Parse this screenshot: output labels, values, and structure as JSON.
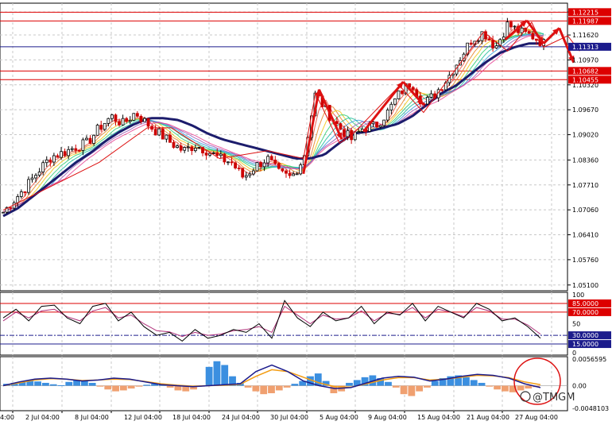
{
  "chart_data": {
    "type": "candlestick",
    "instrument_note": "",
    "x_axis_labels": [
      "2 Jul 04:00",
      "8 Jul 04:00",
      "12 Jul 04:00",
      "18 Jul 04:00",
      "24 Jul 04:00",
      "30 Jul 04:00",
      "5 Aug 04:00",
      "9 Aug 04:00",
      "15 Aug 04:00",
      "21 Aug 04:00",
      "27 Aug 04:00"
    ],
    "leading_x_label": "4:00",
    "price_axis": {
      "ticks": [
        "1.12220",
        "1.11620",
        "1.10970",
        "1.10320",
        "1.09670",
        "1.09020",
        "1.08360",
        "1.07710",
        "1.07060",
        "1.06410",
        "1.05760",
        "1.05100"
      ],
      "range": [
        1.0495,
        1.1245
      ]
    },
    "horizontal_levels": [
      {
        "value": "1.12215",
        "label": "1.12215",
        "color": "#dd0000"
      },
      {
        "value": "1.11987",
        "label": "1.11987",
        "color": "#dd0000"
      },
      {
        "value": "1.11313",
        "label": "1.11313",
        "color": "#1c1c8c"
      },
      {
        "value": "1.10682",
        "label": "1.10682",
        "color": "#dd0000"
      },
      {
        "value": "1.10455",
        "label": "1.10455",
        "color": "#dd0000"
      }
    ],
    "price_path": [
      1.07,
      1.0735,
      1.077,
      1.081,
      1.0845,
      1.0855,
      1.087,
      1.088,
      1.092,
      1.095,
      1.093,
      1.096,
      1.093,
      1.0905,
      1.088,
      1.086,
      1.0875,
      1.086,
      1.084,
      1.083,
      1.079,
      1.082,
      1.084,
      1.08,
      1.079,
      1.084,
      1.101,
      1.096,
      1.092,
      1.089,
      1.092,
      1.0925,
      1.096,
      1.101,
      1.104,
      1.098,
      1.101,
      1.105,
      1.11,
      1.115,
      1.117,
      1.113,
      1.119,
      1.117,
      1.116,
      1.114
    ],
    "ema_path": [
      1.069,
      1.071,
      1.074,
      1.077,
      1.08,
      1.083,
      1.0855,
      1.0885,
      1.091,
      1.093,
      1.0945,
      1.0945,
      1.094,
      1.0925,
      1.0905,
      1.089,
      1.088,
      1.087,
      1.086,
      1.085,
      1.084,
      1.084,
      1.085,
      1.088,
      1.0905,
      1.091,
      1.092,
      1.093,
      1.095,
      1.098,
      1.101,
      1.103,
      1.106,
      1.109,
      1.1115,
      1.113,
      1.114,
      1.114
    ],
    "pattern_lines": [
      [
        [
          0,
          1.0705
        ],
        [
          8,
          1.083
        ],
        [
          12,
          1.092
        ],
        [
          14,
          1.092
        ],
        [
          18,
          1.084
        ],
        [
          20,
          1.085
        ],
        [
          22,
          1.086
        ],
        [
          25,
          1.084
        ],
        [
          26,
          1.101
        ],
        [
          28,
          1.088
        ],
        [
          29,
          1.09
        ],
        [
          33,
          1.103
        ],
        [
          35,
          1.096
        ],
        [
          40,
          1.117
        ],
        [
          42,
          1.112
        ],
        [
          44,
          1.1195
        ],
        [
          45,
          1.113
        ],
        [
          47,
          1.116
        ],
        [
          48,
          1.112
        ]
      ]
    ],
    "arrows": [
      {
        "from": [
          25,
          1.08
        ],
        "to": [
          26.3,
          1.102
        ]
      },
      {
        "from": [
          26.3,
          1.102
        ],
        "to": [
          28.2,
          1.089
        ]
      },
      {
        "from": [
          30,
          1.091
        ],
        "to": [
          33.3,
          1.104
        ]
      },
      {
        "from": [
          33.3,
          1.104
        ],
        "to": [
          35,
          1.098
        ]
      },
      {
        "from": [
          41.8,
          1.115
        ],
        "to": [
          43.6,
          1.12
        ]
      },
      {
        "from": [
          43.6,
          1.12
        ],
        "to": [
          45,
          1.114
        ]
      },
      {
        "from": [
          45,
          1.114
        ],
        "to": [
          46.3,
          1.118
        ]
      },
      {
        "from": [
          46.3,
          1.118
        ],
        "to": [
          47.5,
          1.109
        ]
      }
    ],
    "stochastic": {
      "ticks": [
        "100",
        "85.0000",
        "70.0000",
        "50",
        "30.0000",
        "15.0000",
        "0"
      ],
      "levels": [
        {
          "value": 85,
          "label": "85.0000",
          "color": "#dd0000"
        },
        {
          "value": 70,
          "label": "70.0000",
          "color": "#dd0000"
        },
        {
          "value": 30,
          "label": "30.0000",
          "color": "#1c1c8c"
        },
        {
          "value": 15,
          "label": "15.0000",
          "color": "#1c1c8c"
        }
      ],
      "k_path": [
        60,
        75,
        55,
        80,
        82,
        60,
        50,
        80,
        85,
        55,
        70,
        45,
        30,
        35,
        20,
        40,
        25,
        30,
        40,
        35,
        50,
        25,
        90,
        60,
        45,
        70,
        55,
        60,
        80,
        50,
        70,
        65,
        85,
        55,
        80,
        70,
        60,
        85,
        75,
        55,
        60,
        45,
        25
      ],
      "d_path": [
        55,
        70,
        60,
        72,
        75,
        62,
        55,
        72,
        78,
        60,
        65,
        50,
        38,
        36,
        28,
        35,
        30,
        32,
        38,
        40,
        45,
        35,
        80,
        65,
        50,
        65,
        58,
        60,
        72,
        55,
        68,
        66,
        78,
        60,
        75,
        70,
        62,
        78,
        72,
        58,
        58,
        48,
        32
      ]
    },
    "macd": {
      "ticks": [
        "0.0056595",
        "0.00",
        "-0.0048103"
      ],
      "range": [
        -0.0048103,
        0.0056595
      ],
      "histogram": [
        0.0004,
        0.0006,
        0.0008,
        0.001,
        0.0009,
        0.0006,
        0.0003,
        0.0001,
        0.0008,
        0.0012,
        0.001,
        0.0006,
        -0.0002,
        -0.0008,
        -0.0012,
        -0.001,
        -0.0006,
        -0.0002,
        0.0002,
        0.0004,
        0.0003,
        -0.0004,
        -0.001,
        -0.0012,
        -0.0008,
        -0.0002,
        0.004,
        0.0052,
        0.0044,
        0.002,
        0.0006,
        -0.0004,
        -0.0012,
        -0.0018,
        -0.0016,
        -0.001,
        -0.0004,
        0.0004,
        0.001,
        0.002,
        0.0026,
        0.001,
        -0.0016,
        -0.0012,
        0.0006,
        0.0012,
        0.0018,
        0.0022,
        0.0016,
        0.0008,
        -0.0004,
        -0.0018,
        -0.0022,
        -0.0012,
        -0.0004,
        0.001,
        0.0016,
        0.002,
        0.0022,
        0.0018,
        0.0012,
        0.0006,
        -0.0002,
        -0.0008,
        -0.0012,
        -0.0014,
        -0.001,
        -0.0006,
        -0.0003
      ],
      "macd_line": [
        0.0,
        0.0008,
        0.0014,
        0.0016,
        0.0014,
        0.001,
        0.0012,
        0.0016,
        0.0014,
        0.0008,
        0.0002,
        0.0,
        -0.0002,
        0.0,
        0.0002,
        0.0004,
        0.003,
        0.0044,
        0.003,
        0.001,
        0.0,
        -0.0006,
        -0.0004,
        0.0006,
        0.0016,
        0.002,
        0.0018,
        0.001,
        0.0014,
        0.002,
        0.0024,
        0.0022,
        0.0016,
        0.0004,
        -0.0004
      ],
      "signal_line": [
        0.0,
        0.0006,
        0.0012,
        0.0015,
        0.0014,
        0.0011,
        0.0012,
        0.0014,
        0.0013,
        0.0009,
        0.0004,
        0.0001,
        -0.0001,
        0.0,
        0.0001,
        0.0003,
        0.002,
        0.0034,
        0.003,
        0.0018,
        0.0006,
        -0.0002,
        -0.0003,
        0.0004,
        0.0012,
        0.0017,
        0.0017,
        0.0012,
        0.0014,
        0.0018,
        0.0022,
        0.0021,
        0.0017,
        0.0008,
        0.0002
      ]
    },
    "highlight_circle": "macd-end",
    "colors": {
      "up_candle": "#000000",
      "down_candle": "#cc0000",
      "ema_thick": "#1c1c6c",
      "pattern": "#dd1111",
      "hist_pos": "#3b8fe0",
      "hist_neg": "#f0a070",
      "macd_line": "#1c1c8c",
      "signal_line": "#f39c12",
      "stoch_k": "#000000",
      "stoch_d": "#b0307a",
      "grid": "#c8c8c8",
      "level_bg_red": "#dd0000",
      "level_bg_blue": "#1c1c8c"
    }
  },
  "watermark": "@TMGM"
}
